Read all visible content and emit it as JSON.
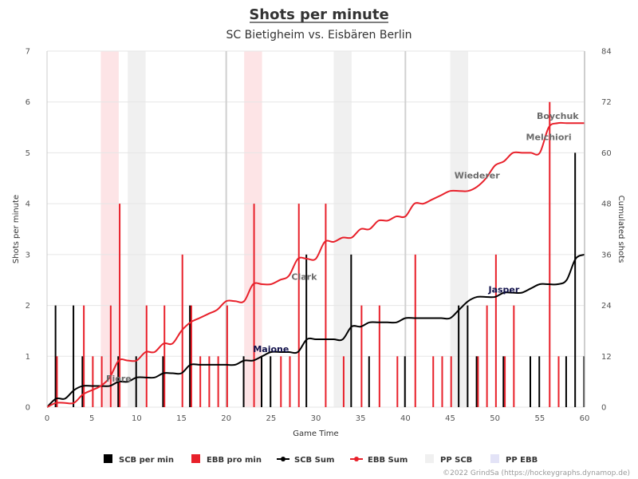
{
  "chart_data": {
    "type": "bar+line",
    "title": "Shots per minute",
    "subtitle": "SC Bietigheim vs. Eisbären Berlin",
    "xlabel": "Game Time",
    "ylabel": "Shots per minute",
    "y2label": "Cumulated shots",
    "xlim": [
      0,
      60
    ],
    "ylim": [
      0,
      7
    ],
    "y2lim": [
      0,
      84
    ],
    "x_ticks": [
      0,
      5,
      10,
      15,
      20,
      25,
      30,
      35,
      40,
      45,
      50,
      55,
      60
    ],
    "y_ticks": [
      0,
      1,
      2,
      3,
      4,
      5,
      6,
      7
    ],
    "y2_ticks": [
      0,
      12,
      24,
      36,
      48,
      60,
      72,
      84
    ],
    "period_lines": [
      20,
      40,
      60
    ],
    "powerplay_scb": [
      [
        9,
        11
      ],
      [
        32,
        34
      ],
      [
        45,
        47
      ]
    ],
    "powerplay_ebb": [
      [
        6,
        8
      ],
      [
        22,
        24
      ]
    ],
    "colors": {
      "scb": "#000000",
      "ebb": "#e8202a",
      "pp_scb": "#f0f0f0",
      "pp_ebb": "#fde4e6"
    },
    "series": [
      {
        "name": "SCB per min",
        "kind": "bar",
        "x": [
          1,
          3,
          4,
          8,
          10,
          13,
          16,
          22,
          24,
          25,
          29,
          34,
          36,
          40,
          46,
          47,
          48,
          51,
          54,
          55,
          58,
          59,
          60
        ],
        "values": [
          2,
          2,
          1,
          1,
          1,
          1,
          2,
          1,
          1,
          1,
          3,
          3,
          1,
          1,
          2,
          2,
          1,
          1,
          1,
          1,
          1,
          5,
          1
        ]
      },
      {
        "name": "EBB pro min",
        "kind": "bar",
        "x": [
          1,
          4,
          5,
          6,
          7,
          8,
          11,
          13,
          15,
          16,
          17,
          18,
          19,
          20,
          23,
          26,
          27,
          28,
          31,
          33,
          35,
          37,
          39,
          41,
          43,
          44,
          45,
          48,
          49,
          50,
          51,
          52,
          56,
          57
        ],
        "values": [
          1,
          2,
          1,
          1,
          2,
          4,
          2,
          2,
          3,
          2,
          1,
          1,
          1,
          2,
          4,
          1,
          1,
          4,
          4,
          1,
          2,
          2,
          1,
          3,
          1,
          1,
          1,
          1,
          2,
          3,
          1,
          2,
          6,
          1
        ]
      },
      {
        "name": "SCB Sum",
        "kind": "cumulative",
        "source": "SCB per min"
      },
      {
        "name": "EBB Sum",
        "kind": "cumulative",
        "source": "EBB pro min"
      }
    ],
    "legend": [
      "SCB per min",
      "EBB pro min",
      "SCB Sum",
      "EBB Sum",
      "PP SCB",
      "PP EBB"
    ],
    "legend_position": "bottom",
    "annotations": [
      {
        "text": "Fiore",
        "x": 8,
        "y2": 6,
        "team": "ebb"
      },
      {
        "text": "Maione",
        "x": 25,
        "y2": 13,
        "team": "scb"
      },
      {
        "text": "Clark",
        "x": 28.7,
        "y2": 30,
        "team": "ebb"
      },
      {
        "text": "Jasper",
        "x": 51,
        "y2": 27,
        "team": "scb"
      },
      {
        "text": "Wiederer",
        "x": 48,
        "y2": 54,
        "team": "ebb"
      },
      {
        "text": "Melchiori",
        "x": 56,
        "y2": 63,
        "team": "ebb"
      },
      {
        "text": "Boychuk",
        "x": 57,
        "y2": 68,
        "team": "ebb"
      }
    ],
    "grid": true
  },
  "credit": "©2022 GrindSa (https://hockeygraphs.dynamop.de)"
}
